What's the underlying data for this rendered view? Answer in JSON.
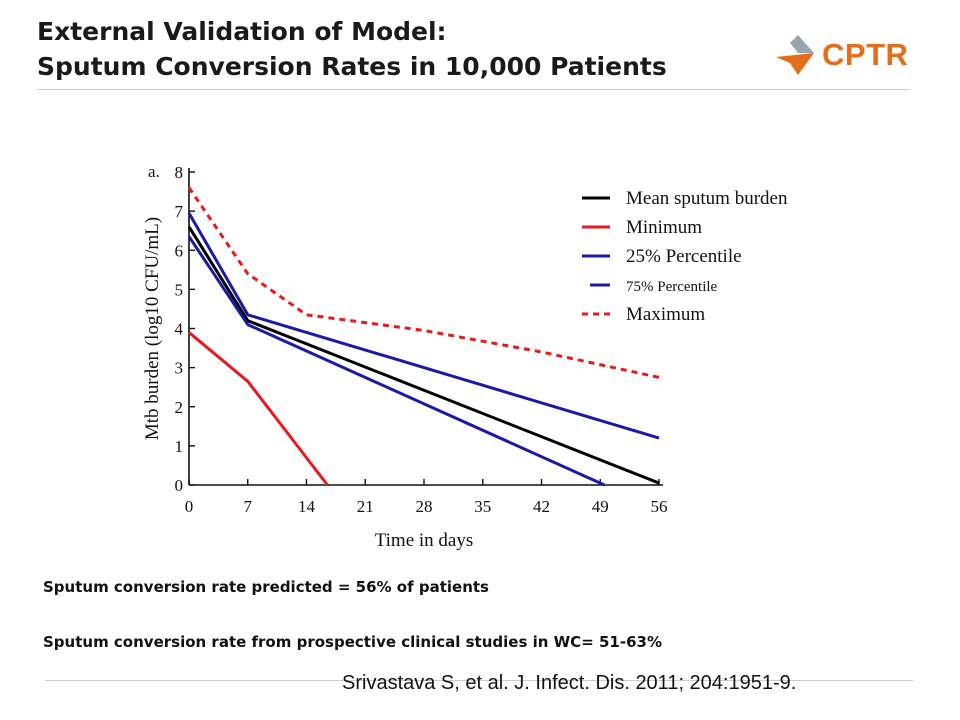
{
  "header": {
    "title_line1": "External Validation of Model:",
    "title_line2": "Sputum Conversion Rates in 10,000 Patients",
    "logo_text": "CPTR",
    "logo_color": "#e46c1b"
  },
  "notes": {
    "predicted": "Sputum conversion rate predicted = 56% of patients",
    "observed": "Sputum conversion rate from prospective clinical studies in WC= 51-63%"
  },
  "citation": "Srivastava S, et al. J. Infect. Dis. 2011; 204:1951-9.",
  "chart_data": {
    "type": "line",
    "panel_label": "a.",
    "xlabel": "Time in days",
    "ylabel": "Mtb burden (log10 CFU/mL)",
    "xlim": [
      0,
      56
    ],
    "ylim": [
      0,
      8
    ],
    "x_ticks": [
      0,
      7,
      14,
      21,
      28,
      35,
      42,
      49,
      56
    ],
    "y_ticks": [
      0,
      1,
      2,
      3,
      4,
      5,
      6,
      7,
      8
    ],
    "grid": false,
    "legend_position": "top-right",
    "series": [
      {
        "name": "Mean  sputum burden",
        "color": "#000000",
        "dash": false,
        "legend_size": "large",
        "points": [
          [
            0,
            6.6
          ],
          [
            7,
            4.2
          ],
          [
            56,
            0.05
          ]
        ]
      },
      {
        "name": "Minimum",
        "color": "#e8191c",
        "dash": false,
        "legend_size": "large",
        "points": [
          [
            0,
            3.9
          ],
          [
            7,
            2.65
          ],
          [
            16.5,
            0
          ]
        ]
      },
      {
        "name": "25% Percentile",
        "color": "#1a1aa6",
        "dash": false,
        "legend_size": "large",
        "points": [
          [
            0,
            6.35
          ],
          [
            7,
            4.1
          ],
          [
            49.5,
            0
          ]
        ]
      },
      {
        "name": "75% Percentile",
        "color": "#1a1aa6",
        "dash": false,
        "legend_size": "small",
        "points": [
          [
            0,
            6.95
          ],
          [
            7,
            4.35
          ],
          [
            56,
            1.2
          ]
        ]
      },
      {
        "name": "Maximum",
        "color": "#e8191c",
        "dash": true,
        "legend_size": "large",
        "points": [
          [
            0,
            7.6
          ],
          [
            7,
            5.4
          ],
          [
            14,
            4.35
          ],
          [
            28,
            3.95
          ],
          [
            42,
            3.4
          ],
          [
            56,
            2.75
          ]
        ]
      }
    ]
  }
}
